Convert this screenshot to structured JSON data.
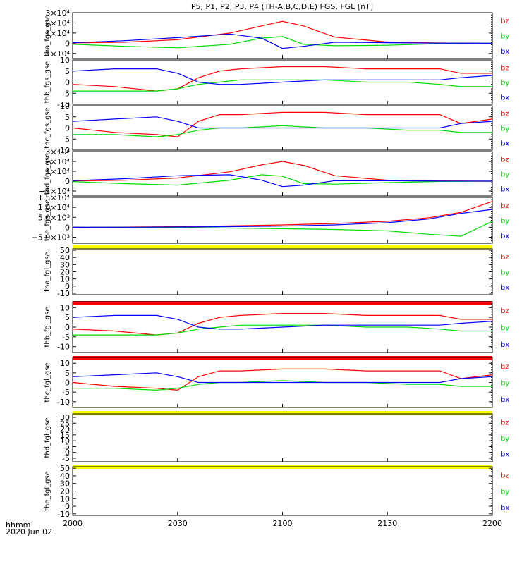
{
  "title": "P5, P1, P2, P3, P4 (TH-A,B,C,D,E) FGS, FGL [nT]",
  "time_axis": {
    "ticks": [
      "2000",
      "2030",
      "2100",
      "2130",
      "2200"
    ],
    "corner_label_1": "hhmm",
    "corner_label_2": "2020 Jun 02"
  },
  "colors": {
    "bz": "#ff0000",
    "by": "#00dd00",
    "bx": "#0000ff"
  },
  "chart_data": [
    {
      "type": "line",
      "panel": "tha_fgs_gse",
      "ylabel": "tha_fgs_gse",
      "ylim": [
        -15000,
        30000
      ],
      "yticks": [
        {
          "v": 30000,
          "l": "3×10⁴"
        },
        {
          "v": 20000,
          "l": "2×10⁴"
        },
        {
          "v": 10000,
          "l": "1×10⁴"
        },
        {
          "v": 0,
          "l": "0"
        },
        {
          "v": -10000,
          "l": "−1×10⁴"
        }
      ],
      "x_hours": [
        0,
        0.25,
        0.5,
        0.75,
        0.9,
        1.0,
        1.1,
        1.25,
        1.5,
        1.75,
        2.0
      ],
      "series": [
        {
          "name": "bz",
          "values": [
            300,
            1000,
            3500,
            10000,
            17000,
            21500,
            17000,
            6000,
            1200,
            200,
            0
          ]
        },
        {
          "name": "by",
          "values": [
            -1000,
            -3000,
            -4500,
            -1000,
            5000,
            6500,
            -1000,
            -2500,
            -2000,
            -400,
            0
          ]
        },
        {
          "name": "bx",
          "values": [
            500,
            2500,
            5500,
            9000,
            5000,
            -5000,
            -3000,
            1000,
            500,
            100,
            0
          ]
        }
      ],
      "legend": [
        "bz",
        "by",
        "bx"
      ],
      "bar": ""
    },
    {
      "type": "line",
      "panel": "thb_fgs_gse",
      "ylabel": "thb_fgs_gse",
      "ylim": [
        -10,
        10
      ],
      "yticks": [
        {
          "v": 10,
          "l": "10"
        },
        {
          "v": 5,
          "l": "5"
        },
        {
          "v": 0,
          "l": "0"
        },
        {
          "v": -5,
          "l": "-5"
        },
        {
          "v": -10,
          "l": "-10"
        }
      ],
      "x_hours": [
        0,
        0.2,
        0.4,
        0.5,
        0.6,
        0.7,
        0.8,
        1.0,
        1.2,
        1.4,
        1.6,
        1.75,
        1.85,
        2.0
      ],
      "series": [
        {
          "name": "bz",
          "values": [
            -1,
            -2,
            -4,
            -3,
            2,
            5,
            6,
            7,
            7,
            6,
            6,
            6,
            4,
            4
          ]
        },
        {
          "name": "by",
          "values": [
            -4,
            -4,
            -4,
            -3,
            -1,
            0,
            1,
            1,
            1,
            0,
            0,
            -1,
            -2,
            -2
          ]
        },
        {
          "name": "bx",
          "values": [
            5,
            6,
            6,
            4,
            0,
            -1,
            -1,
            0,
            1,
            1,
            1,
            1,
            2,
            3
          ]
        }
      ],
      "legend": [
        "bz",
        "by",
        "bx"
      ],
      "bar": ""
    },
    {
      "type": "line",
      "panel": "thc_fgs_gse",
      "ylabel": "thc_fgs_gse",
      "ylim": [
        -10,
        10
      ],
      "yticks": [
        {
          "v": 10,
          "l": "10"
        },
        {
          "v": 5,
          "l": "5"
        },
        {
          "v": 0,
          "l": "0"
        },
        {
          "v": -5,
          "l": "-5"
        },
        {
          "v": -10,
          "l": "-10"
        }
      ],
      "x_hours": [
        0,
        0.2,
        0.4,
        0.5,
        0.6,
        0.7,
        0.8,
        1.0,
        1.2,
        1.4,
        1.6,
        1.75,
        1.85,
        2.0
      ],
      "series": [
        {
          "name": "bz",
          "values": [
            0,
            -2,
            -3,
            -4,
            3,
            6,
            6,
            7,
            7,
            6,
            6,
            6,
            2,
            4
          ]
        },
        {
          "name": "by",
          "values": [
            -3,
            -3,
            -4,
            -3,
            -1,
            0,
            0,
            1,
            0,
            0,
            -1,
            -1,
            -2,
            -2
          ]
        },
        {
          "name": "bx",
          "values": [
            3,
            4,
            5,
            3,
            0,
            0,
            0,
            0,
            0,
            0,
            0,
            0,
            2,
            3
          ]
        }
      ],
      "legend": [
        "bz",
        "by",
        "bx"
      ],
      "bar": ""
    },
    {
      "type": "line",
      "panel": "thd_fgs_gse",
      "ylabel": "thd_fgs_gse",
      "ylim": [
        -15000,
        30000
      ],
      "yticks": [
        {
          "v": 30000,
          "l": "3×10⁴"
        },
        {
          "v": 20000,
          "l": "2×10⁴"
        },
        {
          "v": 10000,
          "l": "1×10⁴"
        },
        {
          "v": 0,
          "l": "0"
        },
        {
          "v": -10000,
          "l": "−1×10⁴"
        }
      ],
      "x_hours": [
        0,
        0.25,
        0.5,
        0.75,
        0.9,
        1.0,
        1.1,
        1.25,
        1.5,
        1.75,
        2.0
      ],
      "series": [
        {
          "name": "bz",
          "values": [
            200,
            900,
            3200,
            9500,
            16500,
            20000,
            16000,
            5500,
            1000,
            200,
            0
          ]
        },
        {
          "name": "by",
          "values": [
            -500,
            -2500,
            -4000,
            1000,
            6500,
            5000,
            -2500,
            -3000,
            -1500,
            -300,
            0
          ]
        },
        {
          "name": "bx",
          "values": [
            500,
            2500,
            5500,
            6500,
            1000,
            -5500,
            -4000,
            500,
            400,
            100,
            0
          ]
        }
      ],
      "legend": [
        "bz",
        "by",
        "bx"
      ],
      "bar": ""
    },
    {
      "type": "line",
      "panel": "the_fgs_gse",
      "ylabel": "the_fgs_gse",
      "ylim": [
        -8000,
        15000
      ],
      "yticks": [
        {
          "v": 15000,
          "l": "1.5×10⁴"
        },
        {
          "v": 10000,
          "l": "1.0×10⁴"
        },
        {
          "v": 5000,
          "l": "5.0×10³"
        },
        {
          "v": 0,
          "l": "0"
        },
        {
          "v": -5000,
          "l": "−5.0×10³"
        }
      ],
      "x_hours": [
        0,
        0.25,
        0.5,
        0.75,
        1.0,
        1.25,
        1.5,
        1.7,
        1.85,
        2.0
      ],
      "series": [
        {
          "name": "bz",
          "values": [
            0,
            100,
            300,
            700,
            1200,
            1900,
            3000,
            4800,
            7500,
            13000
          ]
        },
        {
          "name": "by",
          "values": [
            0,
            -50,
            -200,
            -400,
            -700,
            -1100,
            -1800,
            -3500,
            -4500,
            3000
          ]
        },
        {
          "name": "bx",
          "values": [
            0,
            50,
            150,
            300,
            600,
            1200,
            2300,
            4200,
            7000,
            9000
          ]
        }
      ],
      "legend": [
        "bz",
        "by",
        "bx"
      ],
      "bar": "#ffff00"
    },
    {
      "type": "line",
      "panel": "tha_fgl_gse",
      "ylabel": "tha_fgl_gse",
      "ylim": [
        -12,
        52
      ],
      "yticks": [
        {
          "v": 50,
          "l": "50"
        },
        {
          "v": 40,
          "l": "40"
        },
        {
          "v": 30,
          "l": "30"
        },
        {
          "v": 20,
          "l": "20"
        },
        {
          "v": 10,
          "l": "10"
        },
        {
          "v": 0,
          "l": "0"
        },
        {
          "v": -10,
          "l": "-10"
        }
      ],
      "x_hours": [],
      "series": [],
      "legend": [
        "bz",
        "by",
        "bx"
      ],
      "bar": ""
    },
    {
      "type": "line",
      "panel": "thb_fgl_gse",
      "ylabel": "thb_fgl_gse",
      "ylim": [
        -13,
        13
      ],
      "yticks": [
        {
          "v": 10,
          "l": "10"
        },
        {
          "v": 5,
          "l": "5"
        },
        {
          "v": 0,
          "l": "0"
        },
        {
          "v": -5,
          "l": "-5"
        },
        {
          "v": -10,
          "l": "-10"
        }
      ],
      "x_hours": [
        0,
        0.2,
        0.4,
        0.5,
        0.6,
        0.7,
        0.8,
        1.0,
        1.2,
        1.4,
        1.6,
        1.75,
        1.85,
        2.0
      ],
      "series": [
        {
          "name": "bz",
          "values": [
            -1,
            -2,
            -4,
            -3,
            2,
            5,
            6,
            7,
            7,
            6,
            6,
            6,
            4,
            4
          ]
        },
        {
          "name": "by",
          "values": [
            -4,
            -4,
            -4,
            -3,
            -1,
            0,
            1,
            1,
            1,
            0,
            0,
            -1,
            -2,
            -2
          ]
        },
        {
          "name": "bx",
          "values": [
            5,
            6,
            6,
            4,
            0,
            -1,
            -1,
            0,
            1,
            1,
            1,
            1,
            2,
            3
          ]
        }
      ],
      "legend": [
        "bz",
        "by",
        "bx"
      ],
      "bar": "#ff0000"
    },
    {
      "type": "line",
      "panel": "thc_fgl_gse",
      "ylabel": "thc_fgl_gse",
      "ylim": [
        -13,
        13
      ],
      "yticks": [
        {
          "v": 10,
          "l": "10"
        },
        {
          "v": 5,
          "l": "5"
        },
        {
          "v": 0,
          "l": "0"
        },
        {
          "v": -5,
          "l": "-5"
        },
        {
          "v": -10,
          "l": "-10"
        }
      ],
      "x_hours": [
        0,
        0.2,
        0.4,
        0.5,
        0.6,
        0.7,
        0.8,
        1.0,
        1.2,
        1.4,
        1.6,
        1.75,
        1.85,
        2.0
      ],
      "series": [
        {
          "name": "bz",
          "values": [
            0,
            -2,
            -3,
            -4,
            3,
            6,
            6,
            7,
            7,
            6,
            6,
            6,
            2,
            4
          ]
        },
        {
          "name": "by",
          "values": [
            -3,
            -3,
            -4,
            -3,
            -1,
            0,
            0,
            1,
            0,
            0,
            -1,
            -1,
            -2,
            -2
          ]
        },
        {
          "name": "bx",
          "values": [
            3,
            4,
            5,
            3,
            0,
            0,
            0,
            0,
            0,
            0,
            0,
            0,
            2,
            3
          ]
        }
      ],
      "legend": [
        "bz",
        "by",
        "bx"
      ],
      "bar": "#ff0000"
    },
    {
      "type": "line",
      "panel": "thd_fgl_gse",
      "ylabel": "thd_fgl_gse",
      "ylim": [
        -8,
        33
      ],
      "yticks": [
        {
          "v": 30,
          "l": "30"
        },
        {
          "v": 25,
          "l": "25"
        },
        {
          "v": 20,
          "l": "20"
        },
        {
          "v": 15,
          "l": "15"
        },
        {
          "v": 10,
          "l": "10"
        },
        {
          "v": 5,
          "l": "5"
        },
        {
          "v": 0,
          "l": "0"
        },
        {
          "v": -5,
          "l": "-5"
        }
      ],
      "x_hours": [],
      "series": [],
      "legend": [
        "bz",
        "by",
        "bx"
      ],
      "bar": "#ffff00"
    },
    {
      "type": "line",
      "panel": "the_fgl_gse",
      "ylabel": "the_fgl_gse",
      "ylim": [
        -12,
        52
      ],
      "yticks": [
        {
          "v": 50,
          "l": "50"
        },
        {
          "v": 40,
          "l": "40"
        },
        {
          "v": 30,
          "l": "30"
        },
        {
          "v": 20,
          "l": "20"
        },
        {
          "v": 10,
          "l": "10"
        },
        {
          "v": 0,
          "l": "0"
        },
        {
          "v": -10,
          "l": "-10"
        }
      ],
      "x_hours": [],
      "series": [],
      "legend": [
        "bz",
        "by",
        "bx"
      ],
      "bar": "#ffff00"
    }
  ]
}
